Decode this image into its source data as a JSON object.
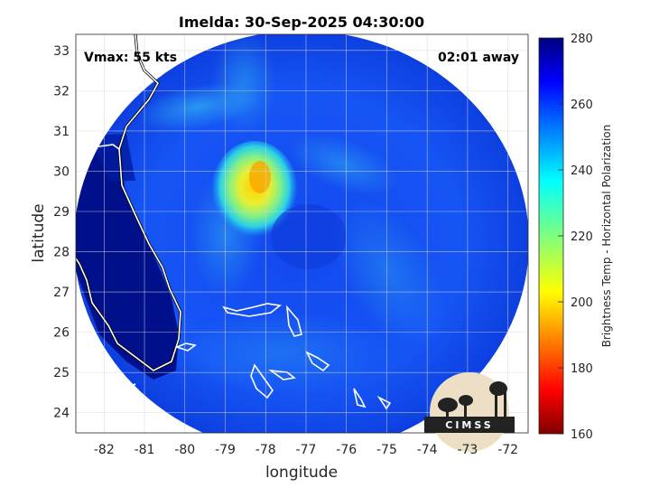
{
  "title": "Imelda: 30-Sep-2025 04:30:00",
  "vmax_label": "Vmax: 55 kts",
  "time_away_label": "02:01 away",
  "axes": {
    "xlabel": "longitude",
    "ylabel": "latitude",
    "x_ticks": [
      "-82",
      "-81",
      "-80",
      "-79",
      "-78",
      "-77",
      "-76",
      "-75",
      "-74",
      "-73",
      "-72"
    ],
    "y_ticks": [
      "24",
      "25",
      "26",
      "27",
      "28",
      "29",
      "30",
      "31",
      "32",
      "33"
    ],
    "xlim": [
      -82.7,
      -71.5
    ],
    "ylim": [
      23.5,
      33.4
    ],
    "grid": true
  },
  "colorbar": {
    "label": "Brightness Temp - Horizontal Polarization",
    "ticks": [
      "160",
      "180",
      "200",
      "220",
      "240",
      "260",
      "280"
    ],
    "range": [
      160,
      280
    ],
    "colormap": "jet"
  },
  "logo": {
    "text": "CIMSS"
  },
  "colors": {
    "land_dark": "#00108a",
    "ocean_blue": "#1450f0",
    "storm_warm": "#f5e11a",
    "coastline": "#ffffff"
  }
}
